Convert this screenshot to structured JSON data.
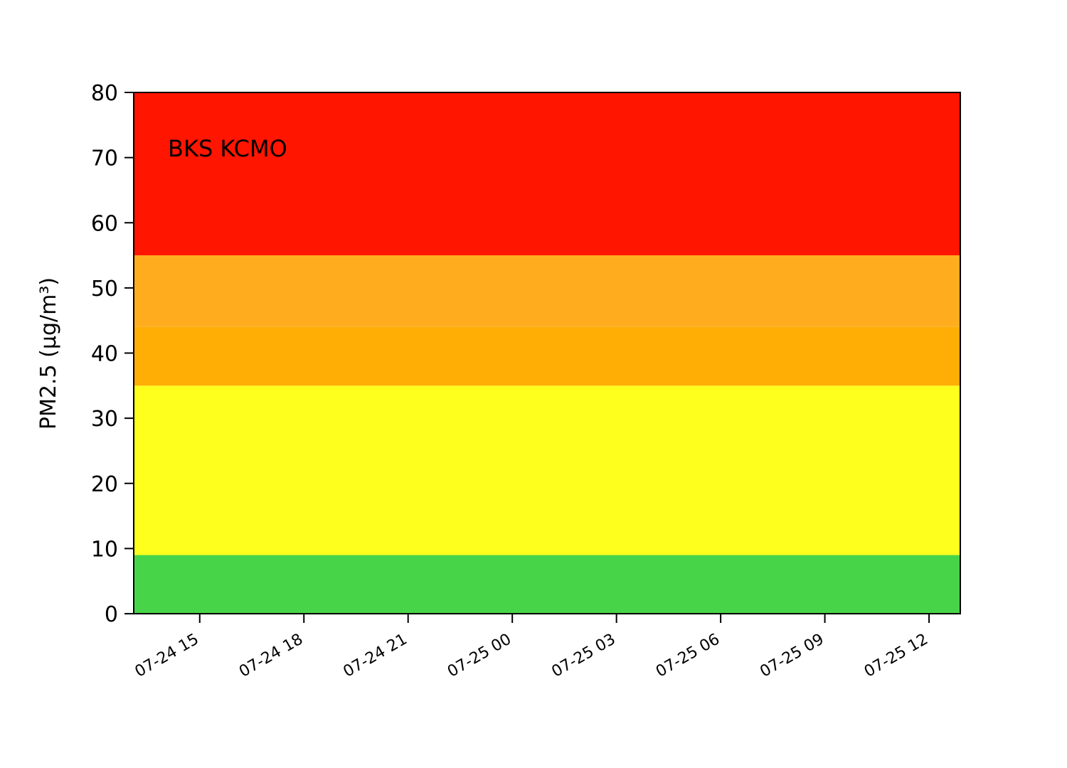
{
  "chart_data": {
    "type": "area",
    "annotation": "BKS KCMO",
    "ylabel": "PM2.5 (µg/m³)",
    "xlabel": "",
    "ylim": [
      0,
      80
    ],
    "yticks": [
      0,
      10,
      20,
      30,
      40,
      50,
      60,
      70,
      80
    ],
    "xlim": [
      "2024-07-24 13:06",
      "2024-07-25 12:54"
    ],
    "xticks": [
      {
        "label": "07-24 15",
        "time": "2024-07-24 15:00"
      },
      {
        "label": "07-24 18",
        "time": "2024-07-24 18:00"
      },
      {
        "label": "07-24 21",
        "time": "2024-07-24 21:00"
      },
      {
        "label": "07-25 00",
        "time": "2024-07-25 00:00"
      },
      {
        "label": "07-25 03",
        "time": "2024-07-25 03:00"
      },
      {
        "label": "07-25 06",
        "time": "2024-07-25 06:00"
      },
      {
        "label": "07-25 09",
        "time": "2024-07-25 09:00"
      },
      {
        "label": "07-25 12",
        "time": "2024-07-25 12:00"
      }
    ],
    "bands": [
      {
        "from": 0,
        "to": 9,
        "color": "#48d448"
      },
      {
        "from": 9,
        "to": 35,
        "color": "#ffff1e"
      },
      {
        "from": 35,
        "to": 44,
        "color": "#ffae05"
      },
      {
        "from": 44,
        "to": 55,
        "color": "#ffad1e"
      },
      {
        "from": 55,
        "to": 80,
        "color": "#ff1500"
      }
    ],
    "grid": false,
    "series": []
  }
}
